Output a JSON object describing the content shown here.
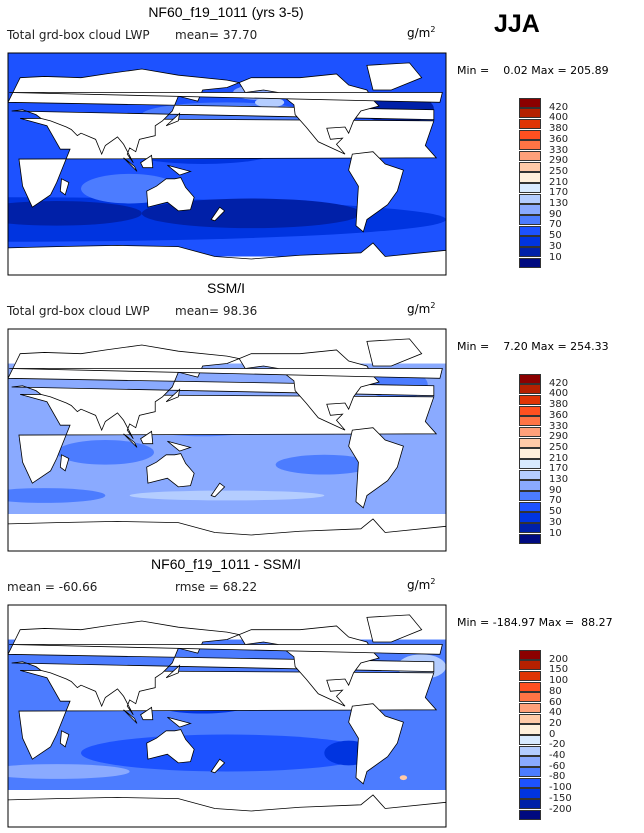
{
  "season": "JJA",
  "panels": [
    {
      "title": "NF60_f19_1011 (yrs 3-5)",
      "field": "Total grd-box cloud LWP",
      "stat1": "mean=  37.70",
      "stat2": "",
      "units": "g/m",
      "units_sup": "2",
      "minmax": "Min =    0.02 Max = 205.89",
      "levels": [
        "420",
        "400",
        "380",
        "360",
        "330",
        "290",
        "250",
        "210",
        "170",
        "130",
        "90",
        "70",
        "50",
        "30",
        "10"
      ]
    },
    {
      "title": "SSM/I",
      "field": "Total grd-box cloud LWP",
      "stat1": "mean=  98.36",
      "stat2": "",
      "units": "g/m",
      "units_sup": "2",
      "minmax": "Min =    7.20 Max = 254.33",
      "levels": [
        "420",
        "400",
        "380",
        "360",
        "330",
        "290",
        "250",
        "210",
        "170",
        "130",
        "90",
        "70",
        "50",
        "30",
        "10"
      ]
    },
    {
      "title": "NF60_f19_1011 - SSM/I",
      "field": "",
      "stat1": "mean = -60.66",
      "stat2": "rmse =  68.22",
      "units": "g/m",
      "units_sup": "2",
      "minmax": "Min = -184.97 Max =  88.27",
      "levels": [
        "200",
        "150",
        "100",
        "80",
        "60",
        "40",
        "20",
        "0",
        "-20",
        "-40",
        "-60",
        "-80",
        "-100",
        "-150",
        "-200"
      ]
    }
  ],
  "colorbar_colors": [
    "#8b0000",
    "#b52000",
    "#e03405",
    "#ff5020",
    "#ff7445",
    "#ffa07a",
    "#ffcaa8",
    "#fff0dc",
    "#d8eaff",
    "#b4cdff",
    "#8aaaff",
    "#4c7cff",
    "#1d52ff",
    "#0034e0",
    "#0020a8",
    "#000a80"
  ],
  "chart_data": {
    "type": "heatmap",
    "season": "JJA",
    "maps": [
      {
        "title": "NF60_f19_1011 (yrs 3-5)",
        "variable": "Total grd-box cloud LWP",
        "units": "g/m2",
        "mean": 37.7,
        "min": 0.02,
        "max": 205.89,
        "contour_levels": [
          10,
          30,
          50,
          70,
          90,
          130,
          170,
          210,
          250,
          290,
          330,
          360,
          380,
          400,
          420
        ]
      },
      {
        "title": "SSM/I",
        "variable": "Total grd-box cloud LWP",
        "units": "g/m2",
        "mean": 98.36,
        "min": 7.2,
        "max": 254.33,
        "contour_levels": [
          10,
          30,
          50,
          70,
          90,
          130,
          170,
          210,
          250,
          290,
          330,
          360,
          380,
          400,
          420
        ]
      },
      {
        "title": "NF60_f19_1011 - SSM/I",
        "units": "g/m2",
        "mean": -60.66,
        "rmse": 68.22,
        "min": -184.97,
        "max": 88.27,
        "contour_levels": [
          -200,
          -150,
          -100,
          -80,
          -60,
          -40,
          -20,
          0,
          20,
          40,
          60,
          80,
          100,
          150,
          200
        ]
      }
    ]
  }
}
